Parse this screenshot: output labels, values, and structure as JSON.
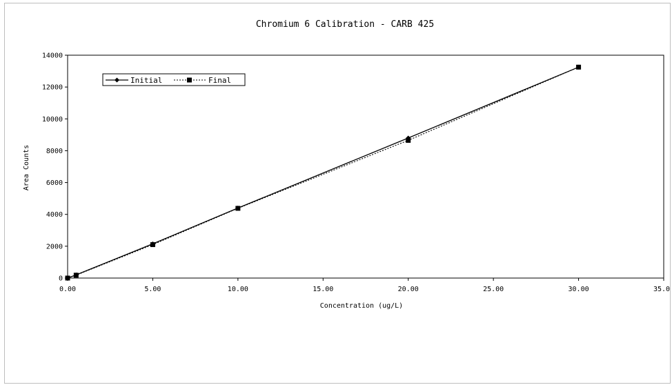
{
  "chart_data": {
    "type": "line",
    "title": "Chromium 6 Calibration - CARB 425",
    "xlabel": "Concentration (ug/L)",
    "ylabel": "Area Counts",
    "xlim": [
      0,
      35
    ],
    "ylim": [
      0,
      14000
    ],
    "x_ticks": [
      0,
      5,
      10,
      15,
      20,
      25,
      30,
      35
    ],
    "x_tick_labels": [
      "0.00",
      "5.00",
      "10.00",
      "15.00",
      "20.00",
      "25.00",
      "30.00",
      "35.00"
    ],
    "y_ticks": [
      0,
      2000,
      4000,
      6000,
      8000,
      10000,
      12000,
      14000
    ],
    "y_tick_labels": [
      "0",
      "2000",
      "4000",
      "6000",
      "8000",
      "10000",
      "12000",
      "14000"
    ],
    "grid": false,
    "legend_position": "top-left",
    "series": [
      {
        "name": "Initial",
        "marker": "diamond",
        "line_style": "solid",
        "color": "#000000",
        "x": [
          0,
          0.5,
          5,
          10,
          20,
          30
        ],
        "y": [
          0,
          200,
          2150,
          4400,
          8800,
          13250
        ]
      },
      {
        "name": "Final",
        "marker": "square",
        "line_style": "dotted",
        "color": "#000000",
        "x": [
          0,
          0.5,
          5,
          10,
          20,
          30
        ],
        "y": [
          0,
          180,
          2100,
          4380,
          8650,
          13250
        ]
      }
    ]
  }
}
